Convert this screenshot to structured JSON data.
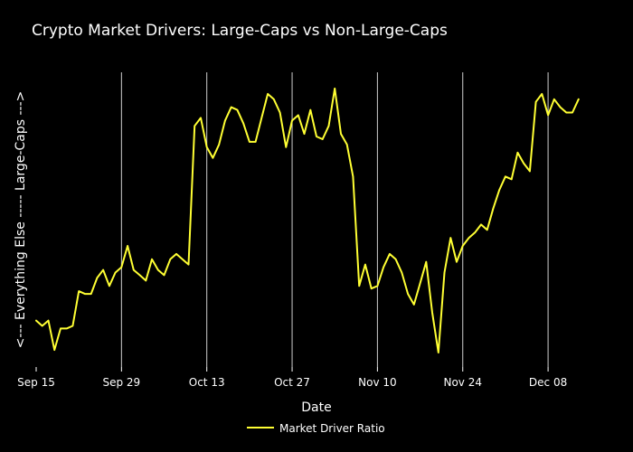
{
  "chart_data": {
    "type": "line",
    "title": "Crypto Market Drivers: Large-Caps vs Non-Large-Caps",
    "xlabel": "Date",
    "ylabel": "<--- Everything Else     -----     Large-Caps --->",
    "start_date": "2023-09-15",
    "x_ticks": [
      {
        "label": "Sep 15",
        "day": 0
      },
      {
        "label": "Sep 29",
        "day": 14
      },
      {
        "label": "Oct 13",
        "day": 28
      },
      {
        "label": "Oct 27",
        "day": 42
      },
      {
        "label": "Nov 10",
        "day": 56
      },
      {
        "label": "Nov 24",
        "day": 70
      },
      {
        "label": "Dec 08",
        "day": 84
      }
    ],
    "xlim": [
      0,
      92
    ],
    "ylim": [
      0,
      1
    ],
    "grid": "vertical",
    "legend": {
      "position": "bottom-center",
      "label": "Market Driver Ratio"
    },
    "series": [
      {
        "name": "Market Driver Ratio",
        "color": "#ffff33",
        "days": [
          0,
          1,
          2,
          3,
          4,
          5,
          6,
          7,
          8,
          9,
          10,
          11,
          12,
          13,
          14,
          15,
          16,
          17,
          18,
          19,
          20,
          21,
          22,
          23,
          24,
          25,
          26,
          27,
          28,
          29,
          30,
          31,
          32,
          33,
          34,
          35,
          36,
          37,
          38,
          39,
          40,
          41,
          42,
          43,
          44,
          45,
          46,
          47,
          48,
          49,
          50,
          51,
          52,
          53,
          54,
          55,
          56,
          57,
          58,
          59,
          60,
          61,
          62,
          63,
          64,
          65,
          66,
          67,
          68,
          69,
          70,
          71,
          72,
          73,
          74,
          75,
          76,
          77,
          78,
          79,
          80,
          81,
          82,
          83,
          84,
          85,
          86,
          87,
          88,
          89
        ],
        "values": [
          0.12,
          0.1,
          0.12,
          0.01,
          0.09,
          0.09,
          0.1,
          0.23,
          0.22,
          0.22,
          0.28,
          0.31,
          0.25,
          0.3,
          0.32,
          0.4,
          0.31,
          0.29,
          0.27,
          0.35,
          0.31,
          0.29,
          0.35,
          0.37,
          0.35,
          0.33,
          0.85,
          0.88,
          0.77,
          0.73,
          0.78,
          0.87,
          0.92,
          0.91,
          0.86,
          0.79,
          0.79,
          0.88,
          0.97,
          0.95,
          0.9,
          0.77,
          0.87,
          0.89,
          0.82,
          0.91,
          0.81,
          0.8,
          0.85,
          0.99,
          0.82,
          0.78,
          0.66,
          0.25,
          0.33,
          0.24,
          0.25,
          0.32,
          0.37,
          0.35,
          0.3,
          0.22,
          0.18,
          0.26,
          0.34,
          0.15,
          0.0,
          0.3,
          0.43,
          0.34,
          0.4,
          0.43,
          0.45,
          0.48,
          0.46,
          0.54,
          0.61,
          0.66,
          0.65,
          0.75,
          0.71,
          0.68,
          0.94,
          0.97,
          0.89,
          0.95,
          0.92,
          0.9,
          0.9,
          0.95
        ]
      }
    ]
  }
}
